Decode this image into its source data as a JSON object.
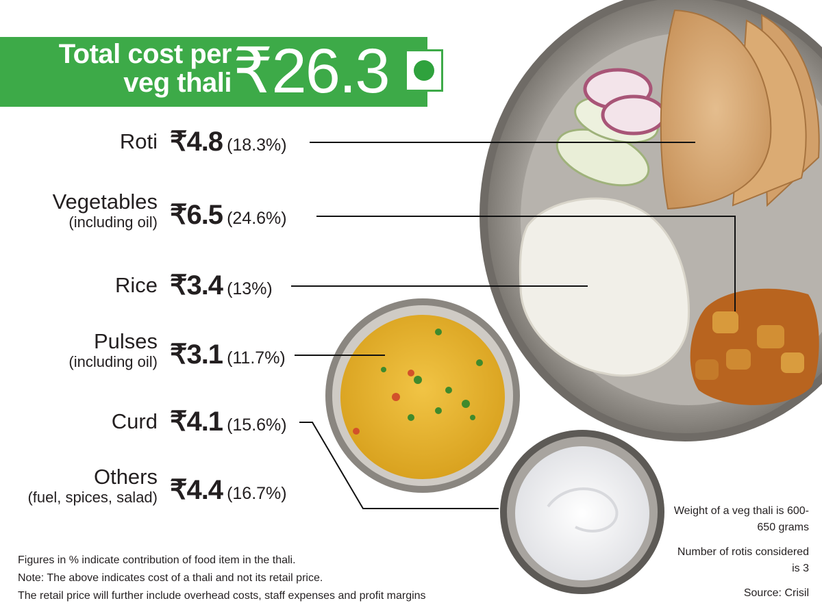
{
  "header": {
    "title": "Total cost per veg thali",
    "total": "₹26.3"
  },
  "chart_data": {
    "type": "table",
    "currency": "₹",
    "items": [
      {
        "label": "Roti",
        "sublabel": "",
        "cost": 4.8,
        "cost_text": "₹4.8",
        "share": 18.3,
        "share_text": "(18.3%)"
      },
      {
        "label": "Vegetables",
        "sublabel": "(including oil)",
        "cost": 6.5,
        "cost_text": "₹6.5",
        "share": 24.6,
        "share_text": "(24.6%)"
      },
      {
        "label": "Rice",
        "sublabel": "",
        "cost": 3.4,
        "cost_text": "₹3.4",
        "share": 13,
        "share_text": "(13%)"
      },
      {
        "label": "Pulses",
        "sublabel": "(including oil)",
        "cost": 3.1,
        "cost_text": "₹3.1",
        "share": 11.7,
        "share_text": "(11.7%)"
      },
      {
        "label": "Curd",
        "sublabel": "",
        "cost": 4.1,
        "cost_text": "₹4.1",
        "share": 15.6,
        "share_text": "(15.6%)"
      },
      {
        "label": "Others",
        "sublabel": "(fuel, spices, salad)",
        "cost": 4.4,
        "cost_text": "₹4.4",
        "share": 16.7,
        "share_text": "(16.7%)"
      }
    ]
  },
  "footnotes": [
    "Figures in % indicate contribution of food item in the thali.",
    "Note: The above indicates cost of a thali and not its retail price.",
    "The retail price will further include overhead costs, staff expenses  and profit margins"
  ],
  "side_notes": {
    "weight": "Weight of a veg thali is 600-650 grams",
    "rotis": "Number of rotis considered is 3",
    "source": "Source: Crisil"
  },
  "colors": {
    "banner": "#3daa48",
    "veg_mark": "#2fa23d",
    "text": "#231f20"
  },
  "icons": {
    "veg_mark": "veg-symbol-icon",
    "thali": "thali-plate-illustration",
    "dal_bowl": "dal-bowl-illustration",
    "curd_bowl": "curd-bowl-illustration"
  }
}
